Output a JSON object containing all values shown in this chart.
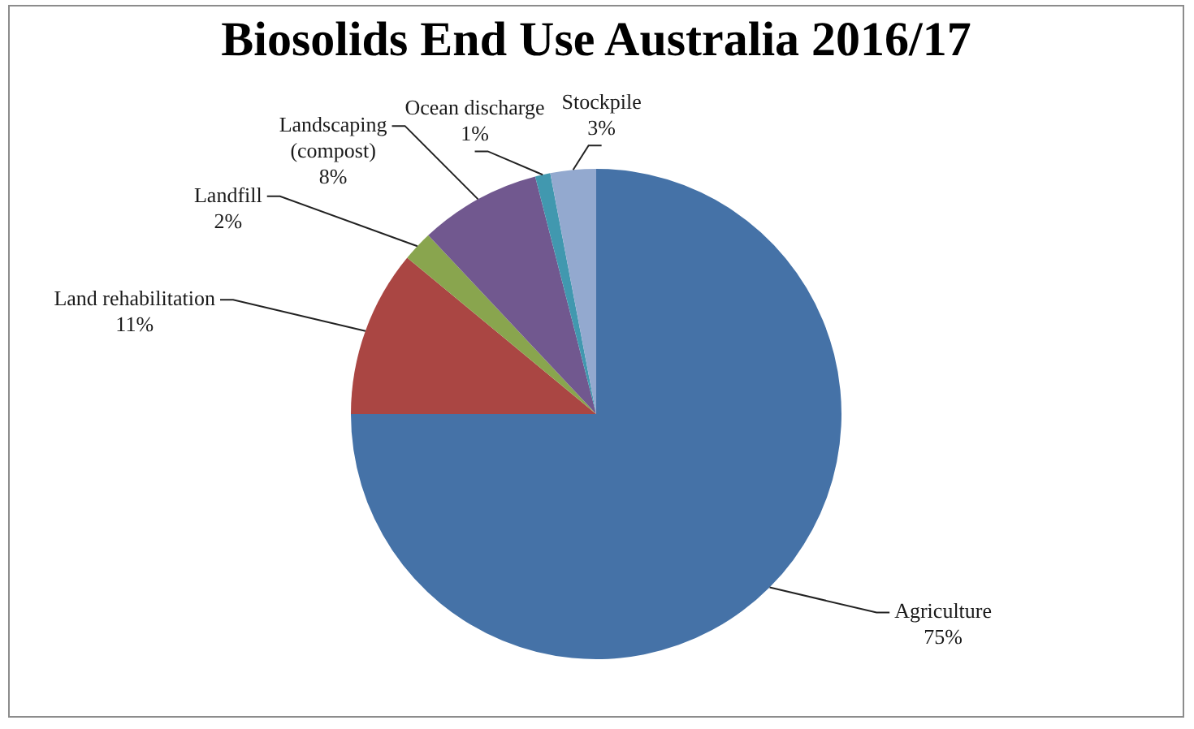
{
  "chart_data": {
    "type": "pie",
    "title": "Biosolids End Use Australia 2016/17",
    "categories": [
      "Agriculture",
      "Land rehabilitation",
      "Landfill",
      "Landscaping (compost)",
      "Ocean discharge",
      "Stockpile"
    ],
    "values": [
      75,
      11,
      2,
      8,
      1,
      3
    ],
    "value_labels": [
      "75%",
      "11%",
      "2%",
      "8%",
      "1%",
      "3%"
    ],
    "colors": [
      "#4572a7",
      "#aa4643",
      "#89a54e",
      "#71588f",
      "#4198af",
      "#93a9cf"
    ],
    "legend": false
  }
}
